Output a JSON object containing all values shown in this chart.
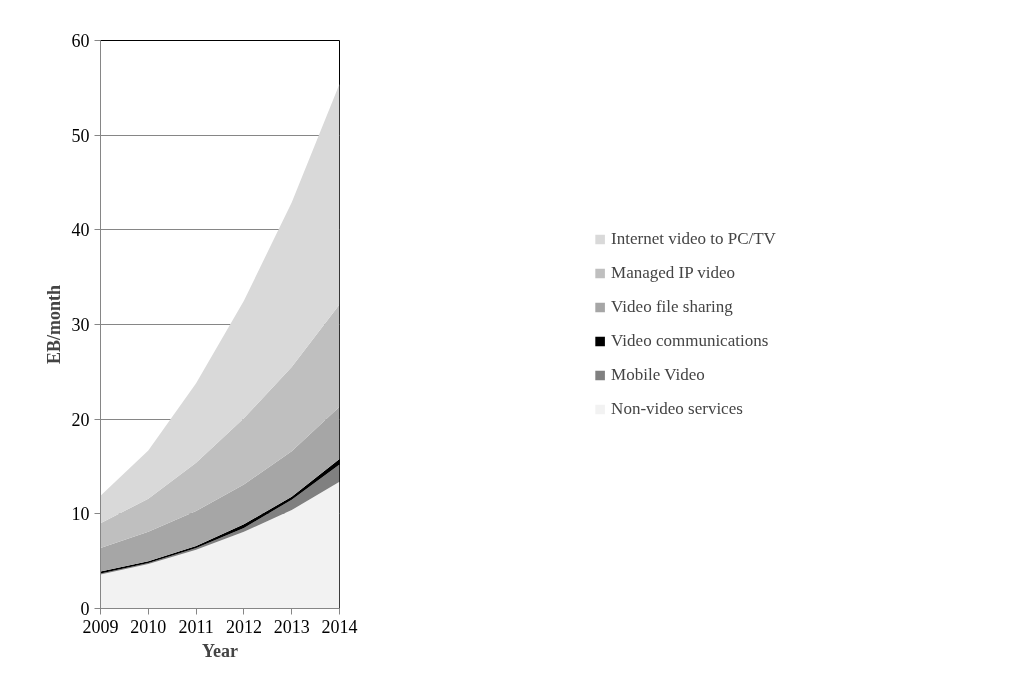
{
  "chart_data": {
    "type": "area",
    "stacked": true,
    "xlabel": "Year",
    "ylabel": "EB/month",
    "x": [
      2009,
      2010,
      2011,
      2012,
      2013,
      2014
    ],
    "xlim": [
      2009,
      2014
    ],
    "xticks": [
      2009,
      2010,
      2011,
      2012,
      2013,
      2014
    ],
    "ylim": [
      0,
      60
    ],
    "yticks": [
      0,
      10,
      20,
      30,
      40,
      50,
      60
    ],
    "grid": "y",
    "legend": "right",
    "series": [
      {
        "name": "Non-video services",
        "color": "#f2f2f2",
        "values": [
          3.6,
          4.7,
          6.2,
          8.1,
          10.4,
          13.4
        ]
      },
      {
        "name": "Mobile Video",
        "color": "#808080",
        "values": [
          0.1,
          0.1,
          0.2,
          0.4,
          1.1,
          1.8
        ]
      },
      {
        "name": "Video communications",
        "color": "#000000",
        "values": [
          0.2,
          0.2,
          0.2,
          0.4,
          0.3,
          0.6
        ]
      },
      {
        "name": "Video file sharing",
        "color": "#a6a6a6",
        "values": [
          2.5,
          3.1,
          3.7,
          4.2,
          4.8,
          5.5
        ]
      },
      {
        "name": "Managed IP video",
        "color": "#bfbfbf",
        "values": [
          2.6,
          3.5,
          5.1,
          7.0,
          8.9,
          10.8
        ]
      },
      {
        "name": "Internet video to PC/TV",
        "color": "#d9d9d9",
        "values": [
          2.9,
          5.1,
          8.4,
          12.4,
          17.4,
          23.3
        ]
      }
    ]
  }
}
